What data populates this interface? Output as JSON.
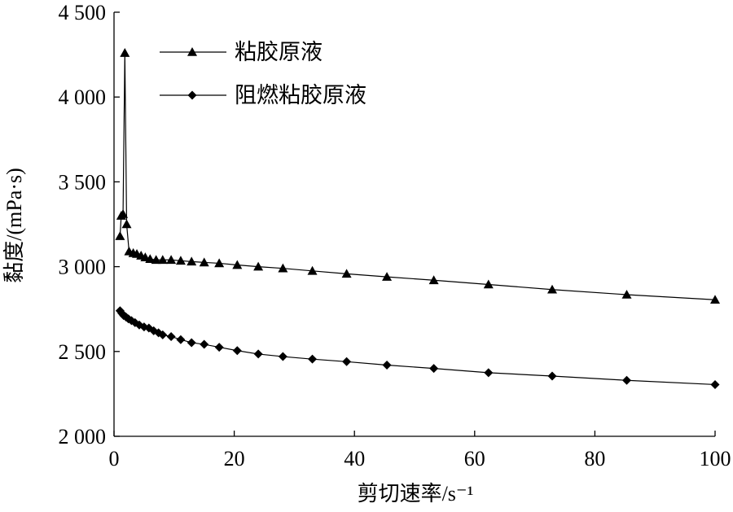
{
  "chart_data": {
    "type": "line",
    "xlabel": "剪切速率/s⁻¹",
    "ylabel": "黏度/(mPa·s)",
    "xlim": [
      0,
      100
    ],
    "ylim": [
      2000,
      4500
    ],
    "x_ticks": [
      0,
      20,
      40,
      60,
      80,
      100
    ],
    "y_ticks": [
      2000,
      2500,
      3000,
      3500,
      4000,
      4500
    ],
    "x_tick_labels": [
      "0",
      "20",
      "40",
      "60",
      "80",
      "100"
    ],
    "y_tick_labels": [
      "2 000",
      "2 500",
      "3 000",
      "3 500",
      "4 000",
      "4 500"
    ],
    "legend_position": "top-left",
    "grid": false,
    "series": [
      {
        "name": "粘胶原液",
        "marker": "triangle",
        "color": "#000000",
        "points": [
          [
            1.0,
            3180
          ],
          [
            1.2,
            3300
          ],
          [
            1.5,
            3310
          ],
          [
            1.8,
            4260
          ],
          [
            2.1,
            3250
          ],
          [
            2.5,
            3090
          ],
          [
            3.2,
            3080
          ],
          [
            3.8,
            3075
          ],
          [
            4.5,
            3065
          ],
          [
            5.2,
            3055
          ],
          [
            6.0,
            3045
          ],
          [
            7.0,
            3040
          ],
          [
            8.1,
            3040
          ],
          [
            9.5,
            3040
          ],
          [
            11.1,
            3035
          ],
          [
            12.9,
            3030
          ],
          [
            15.0,
            3025
          ],
          [
            17.5,
            3020
          ],
          [
            20.5,
            3010
          ],
          [
            24.0,
            3000
          ],
          [
            28.1,
            2990
          ],
          [
            33.0,
            2975
          ],
          [
            38.7,
            2958
          ],
          [
            45.4,
            2940
          ],
          [
            53.2,
            2920
          ],
          [
            62.3,
            2895
          ],
          [
            72.9,
            2865
          ],
          [
            85.3,
            2835
          ],
          [
            100.0,
            2805
          ]
        ]
      },
      {
        "name": "阻燃粘胶原液",
        "marker": "diamond",
        "color": "#000000",
        "points": [
          [
            1.0,
            2740
          ],
          [
            1.3,
            2725
          ],
          [
            1.6,
            2712
          ],
          [
            2.0,
            2703
          ],
          [
            2.4,
            2692
          ],
          [
            2.9,
            2682
          ],
          [
            3.5,
            2670
          ],
          [
            4.2,
            2656
          ],
          [
            5.0,
            2645
          ],
          [
            5.8,
            2638
          ],
          [
            6.6,
            2622
          ],
          [
            7.4,
            2610
          ],
          [
            8.1,
            2598
          ],
          [
            9.5,
            2588
          ],
          [
            11.1,
            2570
          ],
          [
            12.9,
            2552
          ],
          [
            15.0,
            2542
          ],
          [
            17.5,
            2525
          ],
          [
            20.5,
            2505
          ],
          [
            24.0,
            2485
          ],
          [
            28.1,
            2470
          ],
          [
            33.0,
            2455
          ],
          [
            38.7,
            2440
          ],
          [
            45.4,
            2420
          ],
          [
            53.2,
            2400
          ],
          [
            62.3,
            2375
          ],
          [
            72.9,
            2355
          ],
          [
            85.3,
            2330
          ],
          [
            100.0,
            2305
          ]
        ]
      }
    ]
  }
}
